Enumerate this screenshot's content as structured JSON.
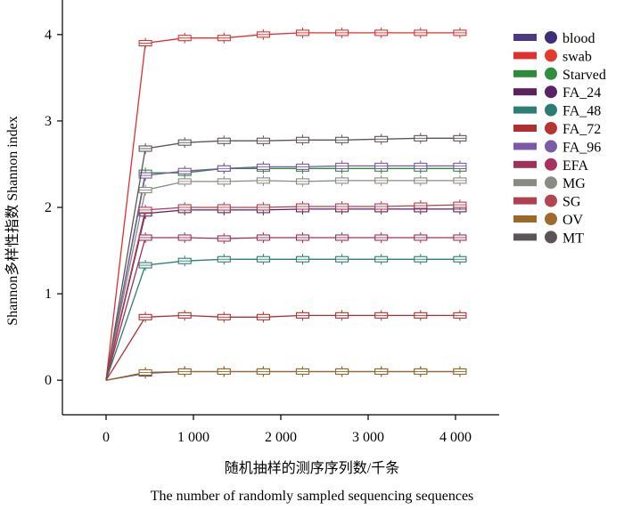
{
  "chart_data": {
    "type": "line",
    "xlabel": "随机抽样的测序序列数/千条",
    "xlabel_en": "The number of randomly sampled sequencing sequences",
    "ylabel": "Shannon多样性指数 Shannon index",
    "xlim": [
      -500,
      4500
    ],
    "ylim": [
      -0.4,
      4.4
    ],
    "x_ticks": [
      0,
      1000,
      2000,
      3000,
      4000
    ],
    "x_tick_labels": [
      "0",
      "1 000",
      "2 000",
      "3 000",
      "4 000"
    ],
    "y_ticks": [
      0,
      1,
      2,
      3,
      4
    ],
    "y_tick_labels": [
      "0",
      "1",
      "2",
      "3",
      "4"
    ],
    "x": [
      0,
      450,
      900,
      1350,
      1800,
      2250,
      2700,
      3150,
      3600,
      4050
    ],
    "legend_position": "top-right",
    "series": [
      {
        "name": "blood",
        "color": "#4d3a7e",
        "dot_color": "#3d2f7a",
        "values": [
          0,
          0.08,
          0.1,
          0.1,
          0.1,
          0.1,
          0.1,
          0.1,
          0.1,
          0.1
        ]
      },
      {
        "name": "swab",
        "color": "#e03030",
        "dot_color": "#e53b2f",
        "values": [
          0,
          3.9,
          3.96,
          3.96,
          4.0,
          4.02,
          4.02,
          4.02,
          4.02,
          4.02
        ]
      },
      {
        "name": "Starved",
        "color": "#2e8b3a",
        "dot_color": "#2f8f3e",
        "values": [
          0,
          2.4,
          2.4,
          2.45,
          2.45,
          2.45,
          2.45,
          2.45,
          2.45,
          2.45
        ]
      },
      {
        "name": "FA_24",
        "color": "#5a2060",
        "dot_color": "#5b2366",
        "values": [
          0,
          1.93,
          1.97,
          1.97,
          1.97,
          1.98,
          1.98,
          1.98,
          1.98,
          1.98
        ]
      },
      {
        "name": "FA_48",
        "color": "#2d7f74",
        "dot_color": "#2b7d73",
        "values": [
          0,
          1.33,
          1.38,
          1.4,
          1.4,
          1.4,
          1.4,
          1.4,
          1.4,
          1.4
        ]
      },
      {
        "name": "FA_72",
        "color": "#b03030",
        "dot_color": "#b8342f",
        "values": [
          0,
          0.73,
          0.75,
          0.73,
          0.73,
          0.75,
          0.75,
          0.75,
          0.75,
          0.75
        ]
      },
      {
        "name": "FA_96",
        "color": "#7a5aa8",
        "dot_color": "#7b5ca8",
        "values": [
          0,
          2.37,
          2.42,
          2.45,
          2.47,
          2.47,
          2.48,
          2.48,
          2.48,
          2.48
        ]
      },
      {
        "name": "EFA",
        "color": "#a03058",
        "dot_color": "#a8315f",
        "values": [
          0,
          1.65,
          1.65,
          1.64,
          1.65,
          1.65,
          1.65,
          1.65,
          1.65,
          1.65
        ]
      },
      {
        "name": "MG",
        "color": "#8a8a84",
        "dot_color": "#8b8a85",
        "values": [
          0,
          2.2,
          2.3,
          2.3,
          2.31,
          2.3,
          2.31,
          2.31,
          2.31,
          2.31
        ]
      },
      {
        "name": "SG",
        "color": "#b04050",
        "dot_color": "#b34453",
        "values": [
          0,
          1.97,
          2.0,
          2.0,
          2.0,
          2.01,
          2.01,
          2.01,
          2.02,
          2.03
        ]
      },
      {
        "name": "OV",
        "color": "#9a6a28",
        "dot_color": "#a06a2a",
        "values": [
          0,
          0.09,
          0.1,
          0.1,
          0.1,
          0.1,
          0.1,
          0.1,
          0.1,
          0.1
        ]
      },
      {
        "name": "MT",
        "color": "#5c5458",
        "dot_color": "#5a5457",
        "values": [
          0,
          2.68,
          2.75,
          2.77,
          2.77,
          2.78,
          2.78,
          2.79,
          2.8,
          2.8
        ]
      }
    ]
  }
}
